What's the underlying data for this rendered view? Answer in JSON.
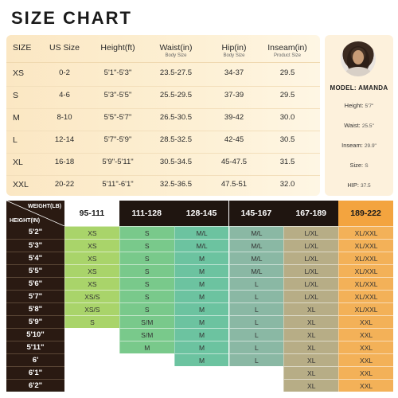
{
  "title": "SIZE CHART",
  "size_table": {
    "headers": [
      {
        "main": "SIZE",
        "sub": ""
      },
      {
        "main": "US Size",
        "sub": ""
      },
      {
        "main": "Height(ft)",
        "sub": ""
      },
      {
        "main": "Waist(in)",
        "sub": "Body Size"
      },
      {
        "main": "Hip(in)",
        "sub": "Body Size"
      },
      {
        "main": "Inseam(in)",
        "sub": "Product Size"
      }
    ],
    "rows": [
      [
        "XS",
        "0-2",
        "5'1\"-5'3\"",
        "23.5-27.5",
        "34-37",
        "29.5"
      ],
      [
        "S",
        "4-6",
        "5'3\"-5'5\"",
        "25.5-29.5",
        "37-39",
        "29.5"
      ],
      [
        "M",
        "8-10",
        "5'5\"-5'7\"",
        "26.5-30.5",
        "39-42",
        "30.0"
      ],
      [
        "L",
        "12-14",
        "5'7\"-5'9\"",
        "28.5-32.5",
        "42-45",
        "30.5"
      ],
      [
        "XL",
        "16-18",
        "5'9\"-5'11\"",
        "30.5-34.5",
        "45-47.5",
        "31.5"
      ],
      [
        "XXL",
        "20-22",
        "5'11\"-6'1\"",
        "32.5-36.5",
        "47.5-51",
        "32.0"
      ]
    ]
  },
  "model": {
    "name": "MODEL: AMANDA",
    "stats": [
      {
        "label": "Height:",
        "value": "5'7\""
      },
      {
        "label": "Waist:",
        "value": "25.5\""
      },
      {
        "label": "Inseam:",
        "value": "29.9\""
      },
      {
        "label": "Size:",
        "value": "S"
      },
      {
        "label": "HIP:",
        "value": "37.5"
      }
    ]
  },
  "hw_chart": {
    "corner_weight": "WEIGHT(LB)",
    "corner_height": "HEIGHT(IN)",
    "weights": [
      "95-111",
      "111-128",
      "128-145",
      "145-167",
      "167-189",
      "189-222"
    ],
    "column_colors": [
      "#a9d46a",
      "#79c98b",
      "#6cc3a0",
      "#8ab8a4",
      "#b7ad86",
      "#f3b158"
    ],
    "header_bg": [
      "#ffffff",
      "#1f1510",
      "#1f1510",
      "#1f1510",
      "#1f1510",
      "#f3a43f"
    ],
    "header_fg": [
      "#1a1a1a",
      "#ffffff",
      "#ffffff",
      "#ffffff",
      "#ffffff",
      "#1a1a1a"
    ],
    "heights": [
      "5'2\"",
      "5'3\"",
      "5'4\"",
      "5'5\"",
      "5'6\"",
      "5'7\"",
      "5'8\"",
      "5'9\"",
      "5'10\"",
      "5'11\"",
      "6'",
      "6'1\"",
      "6'2\""
    ],
    "cells": [
      [
        "XS",
        "S",
        "M/L",
        "M/L",
        "L/XL",
        "XL/XXL"
      ],
      [
        "XS",
        "S",
        "M/L",
        "M/L",
        "L/XL",
        "XL/XXL"
      ],
      [
        "XS",
        "S",
        "M",
        "M/L",
        "L/XL",
        "XL/XXL"
      ],
      [
        "XS",
        "S",
        "M",
        "M/L",
        "L/XL",
        "XL/XXL"
      ],
      [
        "XS",
        "S",
        "M",
        "L",
        "L/XL",
        "XL/XXL"
      ],
      [
        "XS/S",
        "S",
        "M",
        "L",
        "L/XL",
        "XL/XXL"
      ],
      [
        "XS/S",
        "S",
        "M",
        "L",
        "XL",
        "XL/XXL"
      ],
      [
        "S",
        "S/M",
        "M",
        "L",
        "XL",
        "XXL"
      ],
      [
        "",
        "S/M",
        "M",
        "L",
        "XL",
        "XXL"
      ],
      [
        "",
        "M",
        "M",
        "L",
        "XL",
        "XXL"
      ],
      [
        "",
        "",
        "M",
        "L",
        "XL",
        "XXL"
      ],
      [
        "",
        "",
        "",
        "",
        "XL",
        "XXL"
      ],
      [
        "",
        "",
        "",
        "",
        "XL",
        "XXL"
      ]
    ]
  }
}
